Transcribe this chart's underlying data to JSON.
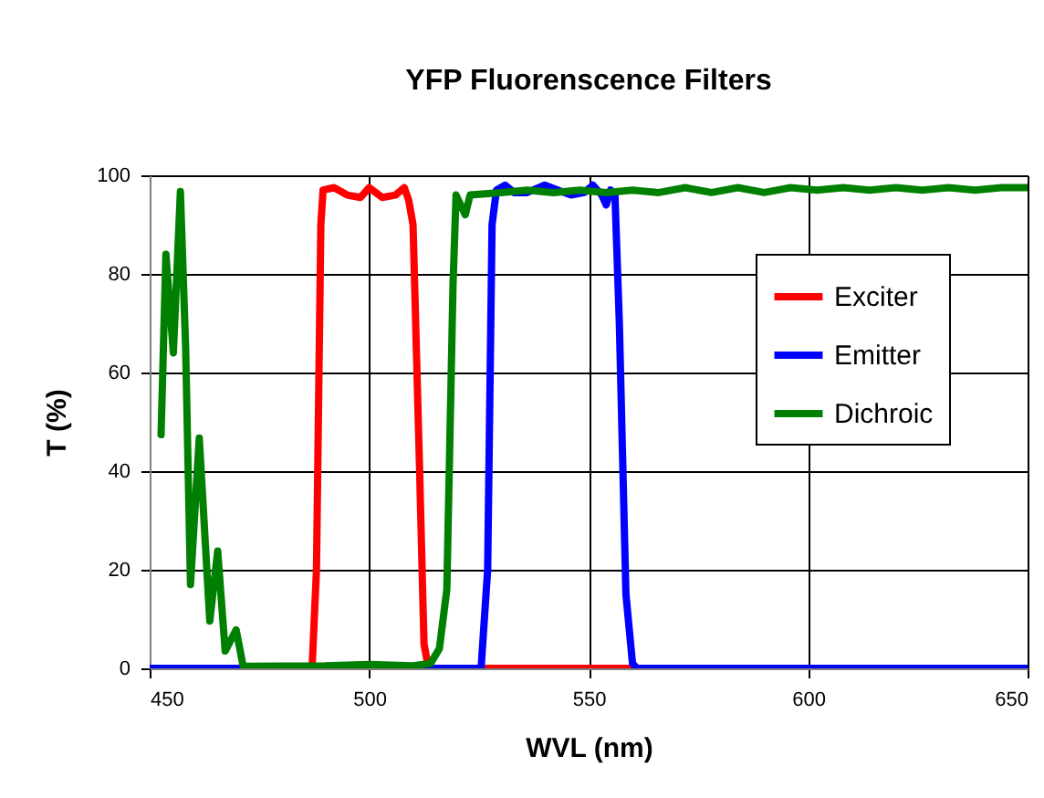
{
  "chart_data": {
    "type": "line",
    "title": "YFP Fluorenscence Filters",
    "xlabel": "WVL (nm)",
    "ylabel": "T (%)",
    "xlim": [
      450,
      650
    ],
    "xticks": [
      450,
      500,
      550,
      600,
      650
    ],
    "ylim": [
      0,
      100
    ],
    "yticks": [
      0,
      20,
      40,
      60,
      80,
      100
    ],
    "grid": true,
    "legend": "top right",
    "marker": "none",
    "line_style": "solid",
    "series": [
      {
        "name": "Exciter",
        "color": "#ff0000",
        "x": [
          450,
          487,
          488,
          489,
          489.5,
          492,
          495,
          498,
          500,
          503,
          506,
          508,
          509,
          510,
          511.5,
          512.5,
          513.5,
          650
        ],
        "values": [
          0,
          0,
          20,
          90,
          97,
          97.5,
          96,
          95.5,
          97.5,
          95.5,
          96,
          97.5,
          95,
          90,
          40,
          5,
          0,
          0
        ]
      },
      {
        "name": "Emitter",
        "color": "#0000ff",
        "x": [
          450,
          525.5,
          527,
          528,
          529,
          531,
          533,
          536,
          540,
          543,
          546,
          549,
          551,
          553,
          554,
          555,
          556,
          557,
          558.5,
          560,
          561,
          650
        ],
        "values": [
          0,
          0,
          20,
          90,
          97,
          98,
          96.5,
          96.5,
          98,
          97,
          96,
          96.5,
          98,
          96,
          94,
          97,
          96,
          70,
          15,
          1,
          0,
          0
        ]
      },
      {
        "name": "Dichroic",
        "color": "#008000",
        "x": [
          452.6,
          453.7,
          455.4,
          457,
          458.2,
          459.3,
          461.3,
          463.7,
          465.5,
          467.2,
          469.7,
          471.3,
          490,
          500,
          510,
          514,
          516,
          517.7,
          519.1,
          519.8,
          521.9,
          523,
          530,
          536,
          542,
          548,
          554,
          560,
          566,
          572,
          578,
          584,
          590,
          596,
          602,
          608,
          614,
          620,
          626,
          632,
          638,
          644,
          650
        ],
        "values": [
          47.4,
          84,
          64,
          96.7,
          65,
          17,
          46.7,
          9.6,
          23.8,
          3.5,
          7.8,
          0.4,
          0.5,
          0.8,
          0.5,
          1,
          4,
          16,
          77.5,
          96,
          92,
          96,
          96.5,
          97,
          96.5,
          97,
          96.5,
          97,
          96.5,
          97.5,
          96.5,
          97.5,
          96.5,
          97.5,
          97,
          97.5,
          97,
          97.5,
          97,
          97.5,
          97,
          97.5,
          97.5
        ]
      }
    ]
  }
}
